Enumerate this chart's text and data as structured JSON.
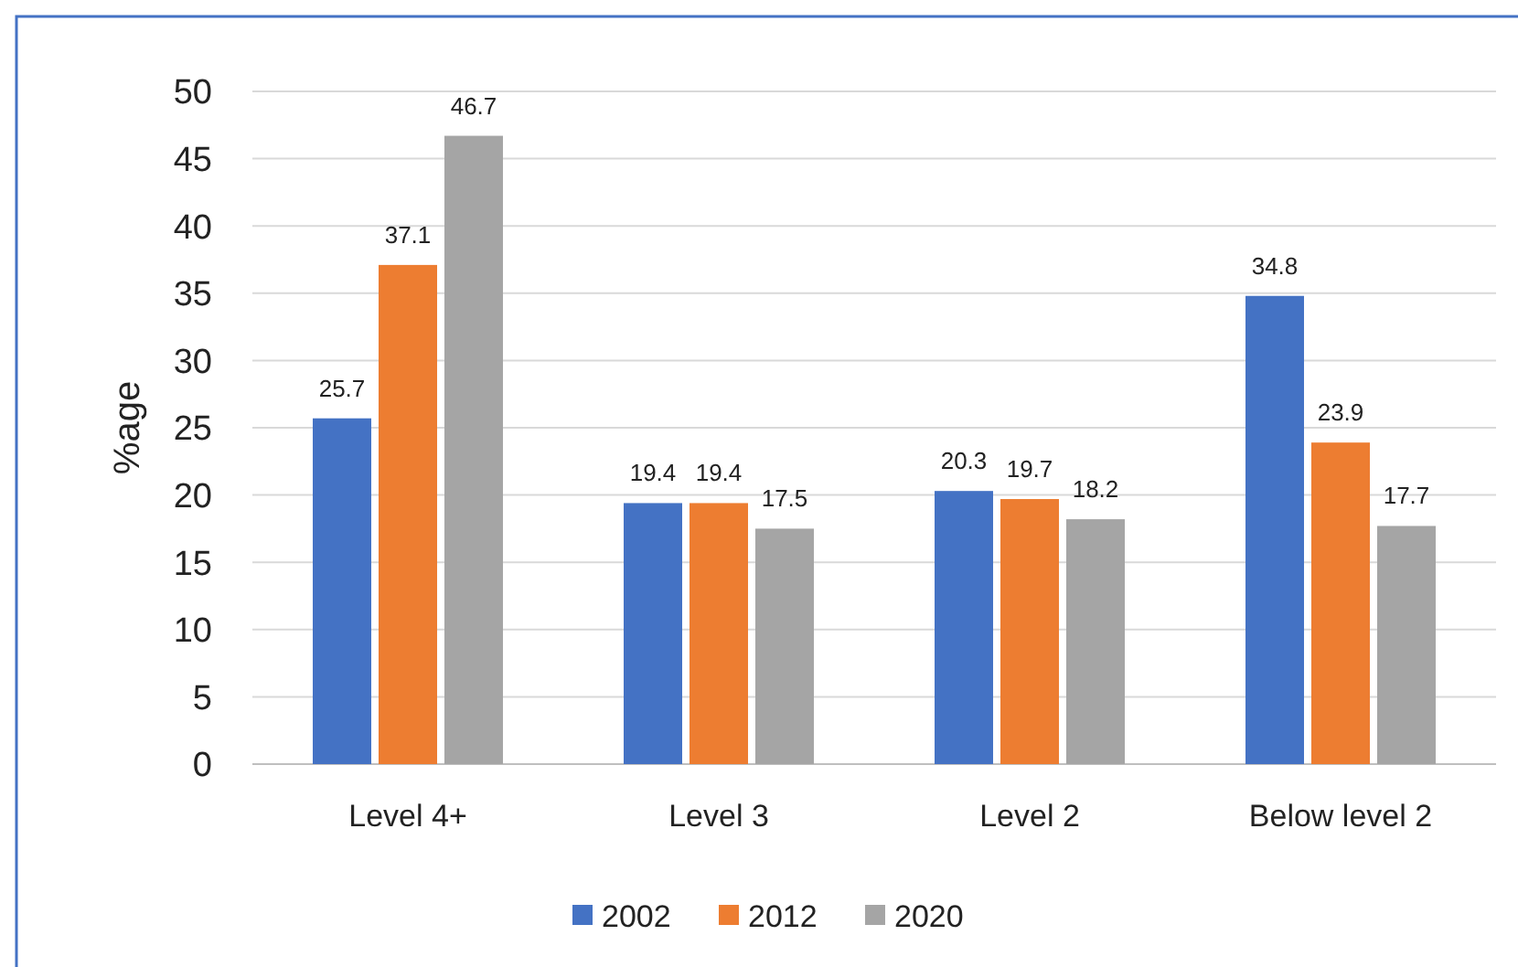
{
  "chart_data": {
    "type": "bar",
    "ylabel": "%age",
    "categories": [
      "Level 4+",
      "Level 3",
      "Level 2",
      "Below level 2"
    ],
    "series": [
      {
        "name": "2002",
        "color": "#4472c4",
        "values": [
          25.7,
          19.4,
          20.3,
          34.8
        ]
      },
      {
        "name": "2012",
        "color": "#ed7d31",
        "values": [
          37.1,
          19.4,
          19.7,
          23.9
        ]
      },
      {
        "name": "2020",
        "color": "#a5a5a5",
        "values": [
          46.7,
          17.5,
          18.2,
          17.7
        ]
      }
    ],
    "ylim": [
      0,
      50
    ],
    "yticks": [
      0,
      5,
      10,
      15,
      20,
      25,
      30,
      35,
      40,
      45,
      50
    ],
    "grid": "y",
    "legend": "bottom",
    "data_labels": true
  }
}
